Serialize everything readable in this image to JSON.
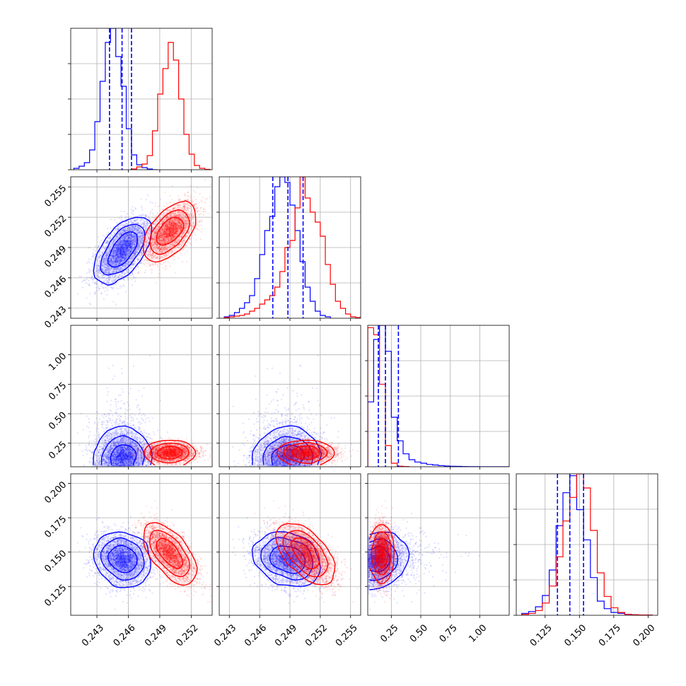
{
  "chart_data": {
    "type": "corner",
    "n_params": 4,
    "grid": true,
    "colors": {
      "blue": "#0000ff",
      "red": "#ff0000"
    },
    "params": [
      {
        "range": [
          0.2405,
          0.254
        ],
        "ticks": [
          0.243,
          0.246,
          0.249,
          0.252
        ],
        "tick_labels": [
          "0.243",
          "0.246",
          "0.249",
          "0.252"
        ]
      },
      {
        "range": [
          0.242,
          0.256
        ],
        "ticks": [
          0.243,
          0.246,
          0.249,
          0.252,
          0.255
        ],
        "tick_labels": [
          "0.243",
          "0.246",
          "0.249",
          "0.252",
          "0.255"
        ]
      },
      {
        "range": [
          0.05,
          1.25
        ],
        "ticks": [
          0.25,
          0.5,
          0.75,
          1.0
        ],
        "tick_labels": [
          "0.25",
          "0.50",
          "0.75",
          "1.00"
        ]
      },
      {
        "range": [
          0.104,
          0.207
        ],
        "ticks": [
          0.125,
          0.15,
          0.175,
          0.2
        ],
        "tick_labels": [
          "0.125",
          "0.150",
          "0.175",
          "0.200"
        ]
      }
    ],
    "series": [
      {
        "color": "blue",
        "mean": [
          0.2455,
          0.2488,
          0.21,
          0.1445
        ],
        "sd": [
          0.0013,
          0.0016,
          0.11,
          0.0095
        ],
        "corr": {
          "0-1": 0.6,
          "0-2": 0.0,
          "0-3": 0.0,
          "1-2": 0.05,
          "1-3": -0.25,
          "2-3": 0.05
        },
        "quantile_lines": [
          [
            0.2442,
            0.2454,
            0.2463
          ],
          [
            0.2473,
            0.2488,
            0.2503
          ],
          [
            0.14,
            0.2,
            0.31
          ],
          [
            0.134,
            0.143,
            0.153
          ]
        ],
        "histograms": [
          {
            "bin_edges": [
              0.2408,
              0.2413,
              0.2418,
              0.2423,
              0.2428,
              0.2433,
              0.2438,
              0.2443,
              0.2448,
              0.2453,
              0.2458,
              0.2463,
              0.2468,
              0.2473,
              0.2478,
              0.2483,
              0.2488
            ],
            "counts": [
              2,
              5,
              10,
              28,
              68,
              125,
              180,
              200,
              160,
              118,
              58,
              21,
              7,
              3,
              1,
              0
            ]
          },
          {
            "bin_edges": [
              0.2425,
              0.243,
              0.2435,
              0.244,
              0.2445,
              0.245,
              0.2455,
              0.246,
              0.2465,
              0.247,
              0.2475,
              0.248,
              0.2485,
              0.249,
              0.2495,
              0.25,
              0.2505,
              0.251,
              0.2515,
              0.252,
              0.2525,
              0.253
            ],
            "counts": [
              1,
              2,
              4,
              7,
              11,
              16,
              28,
              45,
              62,
              72,
              93,
              100,
              96,
              80,
              62,
              40,
              22,
              12,
              5,
              2,
              1
            ]
          },
          {
            "bin_edges": [
              0.05,
              0.1,
              0.15,
              0.2,
              0.25,
              0.3,
              0.35,
              0.4,
              0.45,
              0.5,
              0.55,
              0.6,
              0.65,
              0.7,
              0.75,
              0.8,
              0.85,
              0.9,
              1.0,
              1.25
            ],
            "counts": [
              55,
              108,
              120,
              98,
              42,
              22,
              11,
              6,
              4,
              3,
              2,
              1.5,
              1,
              0.6,
              0.4,
              0.3,
              0.2,
              0.1,
              0.05
            ]
          },
          {
            "bin_edges": [
              0.108,
              0.113,
              0.118,
              0.123,
              0.128,
              0.133,
              0.138,
              0.143,
              0.148,
              0.153,
              0.158,
              0.163,
              0.168,
              0.173,
              0.178,
              0.183,
              0.188,
              0.193,
              0.198,
              0.203
            ],
            "counts": [
              2,
              4,
              9,
              21,
              48,
              95,
              130,
              148,
              112,
              80,
              40,
              15,
              7,
              3,
              2,
              1,
              0.5,
              0.3,
              0.2
            ]
          }
        ]
      },
      {
        "color": "red",
        "mean": [
          0.25,
          0.2506,
          0.17,
          0.1487
        ],
        "sd": [
          0.0012,
          0.0014,
          0.04,
          0.0095
        ],
        "corr": {
          "0-1": 0.6,
          "0-2": 0.0,
          "0-3": -0.45,
          "1-2": 0.05,
          "1-3": -0.4,
          "2-3": 0.0
        },
        "histograms": [
          {
            "bin_edges": [
              0.2463,
              0.2468,
              0.2473,
              0.2478,
              0.2483,
              0.2488,
              0.2493,
              0.2498,
              0.2503,
              0.2508,
              0.2513,
              0.2518,
              0.2523,
              0.2528,
              0.2533,
              0.2538
            ],
            "counts": [
              1,
              4,
              8,
              20,
              55,
              107,
              143,
              180,
              155,
              100,
              50,
              22,
              6,
              2,
              0.5
            ]
          },
          {
            "bin_edges": [
              0.2425,
              0.243,
              0.2435,
              0.244,
              0.2445,
              0.245,
              0.2455,
              0.246,
              0.2465,
              0.247,
              0.2475,
              0.248,
              0.2485,
              0.249,
              0.2495,
              0.25,
              0.2505,
              0.251,
              0.2515,
              0.252,
              0.2525,
              0.253,
              0.2535,
              0.254,
              0.2545,
              0.255,
              0.2555,
              0.256
            ],
            "counts": [
              0.5,
              1,
              1.5,
              2,
              3,
              5,
              7,
              10,
              13,
              16,
              22,
              33,
              50,
              55,
              78,
              100,
              85,
              75,
              68,
              58,
              38,
              24,
              12,
              7,
              3,
              1,
              0.5
            ]
          },
          {
            "bin_edges": [
              0.05,
              0.1,
              0.15,
              0.2,
              0.25,
              0.3,
              0.35,
              0.4
            ],
            "counts": [
              118,
              112,
              70,
              18,
              3,
              0.5,
              0.2
            ]
          },
          {
            "bin_edges": [
              0.108,
              0.113,
              0.118,
              0.123,
              0.128,
              0.133,
              0.138,
              0.143,
              0.148,
              0.153,
              0.158,
              0.163,
              0.168,
              0.173,
              0.178,
              0.183,
              0.188,
              0.193,
              0.198,
              0.203
            ],
            "counts": [
              1,
              2,
              5,
              13,
              31,
              62,
              100,
              125,
              150,
              135,
              90,
              45,
              20,
              8,
              3,
              1,
              0.5,
              0.3,
              0.2
            ]
          }
        ]
      }
    ]
  }
}
